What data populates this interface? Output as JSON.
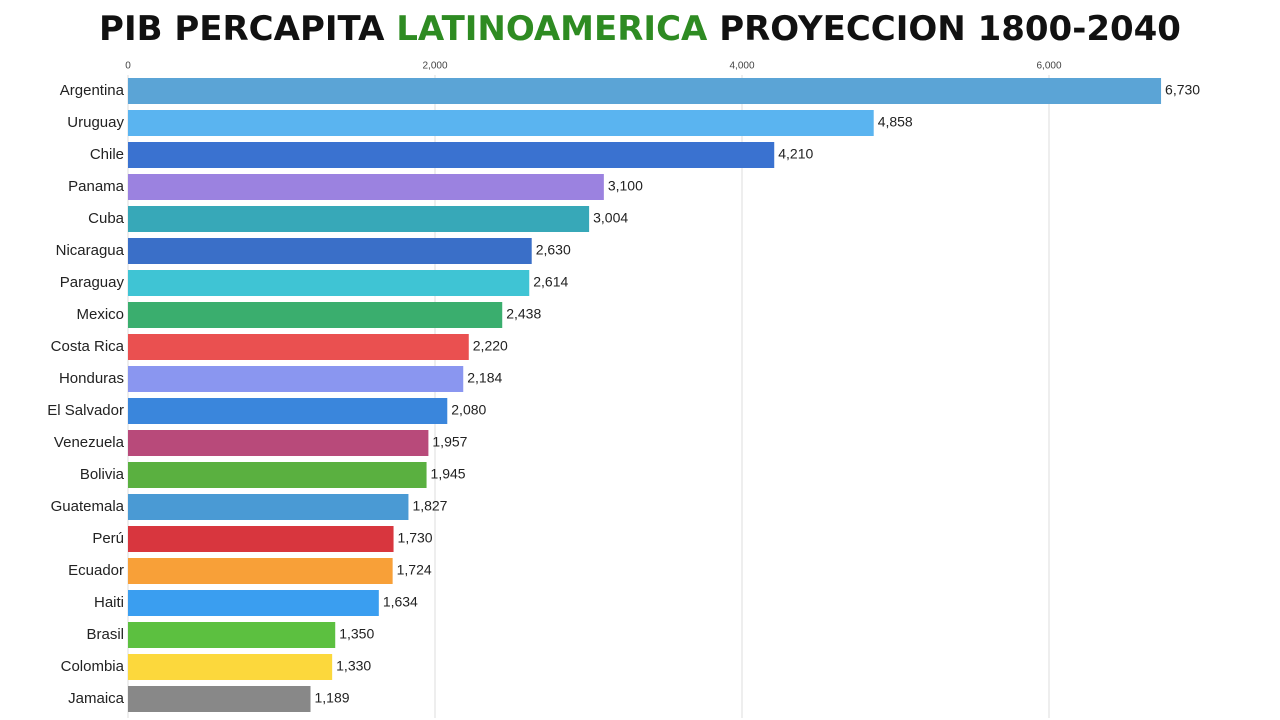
{
  "chart_data": {
    "type": "bar",
    "orientation": "horizontal",
    "title_parts": [
      "PIB PERCAPITA",
      "LATINOAMERICA",
      "PROYECCION 1800-2040"
    ],
    "title_colors": [
      "#111111",
      "#2e8b22",
      "#111111"
    ],
    "categories": [
      "Argentina",
      "Uruguay",
      "Chile",
      "Panama",
      "Cuba",
      "Nicaragua",
      "Paraguay",
      "Mexico",
      "Costa Rica",
      "Honduras",
      "El Salvador",
      "Venezuela",
      "Bolivia",
      "Guatemala",
      "Perú",
      "Ecuador",
      "Haiti",
      "Brasil",
      "Colombia",
      "Jamaica"
    ],
    "values": [
      6730,
      4858,
      4210,
      3100,
      3004,
      2630,
      2614,
      2438,
      2220,
      2184,
      2080,
      1957,
      1945,
      1827,
      1730,
      1724,
      1634,
      1350,
      1330,
      1189
    ],
    "value_labels": [
      "6,730",
      "4,858",
      "4,210",
      "3,100",
      "3,004",
      "2,630",
      "2,614",
      "2,438",
      "2,220",
      "2,184",
      "2,080",
      "1,957",
      "1,945",
      "1,827",
      "1,730",
      "1,724",
      "1,634",
      "1,350",
      "1,330",
      "1,189"
    ],
    "colors": [
      "#5ba4d6",
      "#5ab4f0",
      "#3a72d0",
      "#9b82e0",
      "#37a8b8",
      "#3a6fc8",
      "#3fc4d4",
      "#3aae6e",
      "#ea5050",
      "#8a96f0",
      "#3a86dc",
      "#b84a7a",
      "#5ab040",
      "#4a9ad4",
      "#d8363e",
      "#f8a038",
      "#3a9ef0",
      "#5cc040",
      "#fcd83c",
      "#888888"
    ],
    "xlim": [
      0,
      7000
    ],
    "xticks": [
      0,
      {
        "value": 2000,
        "label": "2,000"
      },
      {
        "value": 4000,
        "label": "4,000"
      },
      {
        "value": 6000,
        "label": "6,000"
      }
    ],
    "grid": true
  }
}
